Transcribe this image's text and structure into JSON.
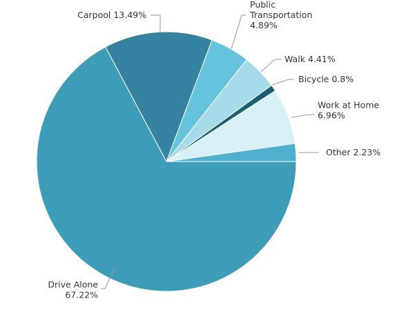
{
  "chart_data": {
    "type": "pie",
    "start_angle_deg": 0,
    "direction": "counterclockwise",
    "legend": "none",
    "slices": [
      {
        "name": "Other",
        "value": 2.23,
        "label_lines": [
          "Other 2.23%"
        ],
        "color": "#4fb0d0"
      },
      {
        "name": "Work at Home",
        "value": 6.96,
        "label_lines": [
          "Work at Home",
          "6.96%"
        ],
        "color": "#d6f0f6"
      },
      {
        "name": "Bicycle",
        "value": 0.8,
        "label_lines": [
          "Bicycle 0.8%"
        ],
        "color": "#1b5f73"
      },
      {
        "name": "Walk",
        "value": 4.41,
        "label_lines": [
          "Walk 4.41%"
        ],
        "color": "#a6dcea"
      },
      {
        "name": "Public Transportation",
        "value": 4.89,
        "label_lines": [
          "Public",
          "Transportation",
          "4.89%"
        ],
        "color": "#66c3dd"
      },
      {
        "name": "Carpool",
        "value": 13.49,
        "label_lines": [
          "Carpool 13.49%"
        ],
        "color": "#3683a1"
      },
      {
        "name": "Drive Alone",
        "value": 67.22,
        "label_lines": [
          "Drive Alone",
          "67.22%"
        ],
        "color": "#3d9cb7"
      }
    ]
  }
}
